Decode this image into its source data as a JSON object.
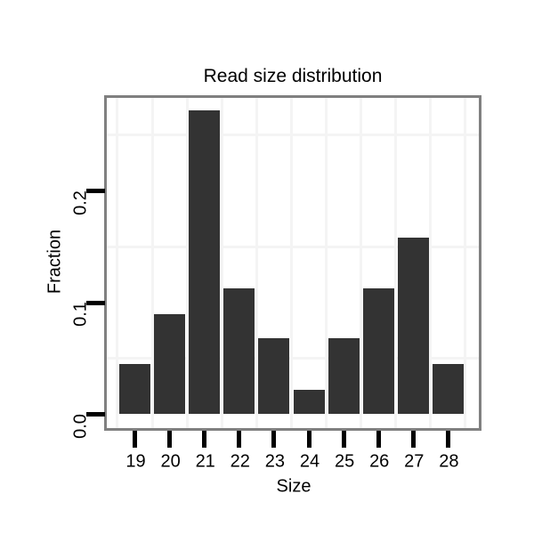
{
  "chart_data": {
    "type": "bar",
    "title": "Read size distribution",
    "xlabel": "Size",
    "ylabel": "Fraction",
    "categories": [
      "19",
      "20",
      "21",
      "22",
      "23",
      "24",
      "25",
      "26",
      "27",
      "28"
    ],
    "x": [
      19,
      20,
      21,
      22,
      23,
      24,
      25,
      26,
      27,
      28
    ],
    "values": [
      0.045,
      0.09,
      0.272,
      0.113,
      0.068,
      0.022,
      0.068,
      0.113,
      0.158,
      0.045
    ],
    "yticks": [
      0.0,
      0.1,
      0.2
    ],
    "ytick_labels": [
      "0.0",
      "0.1",
      "0.2"
    ],
    "minor_gridlines_y": [
      0.05,
      0.15,
      0.25
    ],
    "minor_gridlines_x": [
      18.5,
      19.5,
      20.5,
      21.5,
      22.5,
      23.5,
      24.5,
      25.5,
      26.5,
      27.5,
      28.5
    ],
    "ylim": [
      -0.012,
      0.286
    ],
    "xlim": [
      18.1,
      28.95
    ],
    "bar_width_fraction": 0.9,
    "grid": "minor-only",
    "legend": "none"
  },
  "colors": {
    "bar": "#333333",
    "panel_border": "#808080",
    "gridline": "#f4f4f4",
    "tick": "#000000",
    "text": "#000000",
    "background": "#ffffff"
  }
}
